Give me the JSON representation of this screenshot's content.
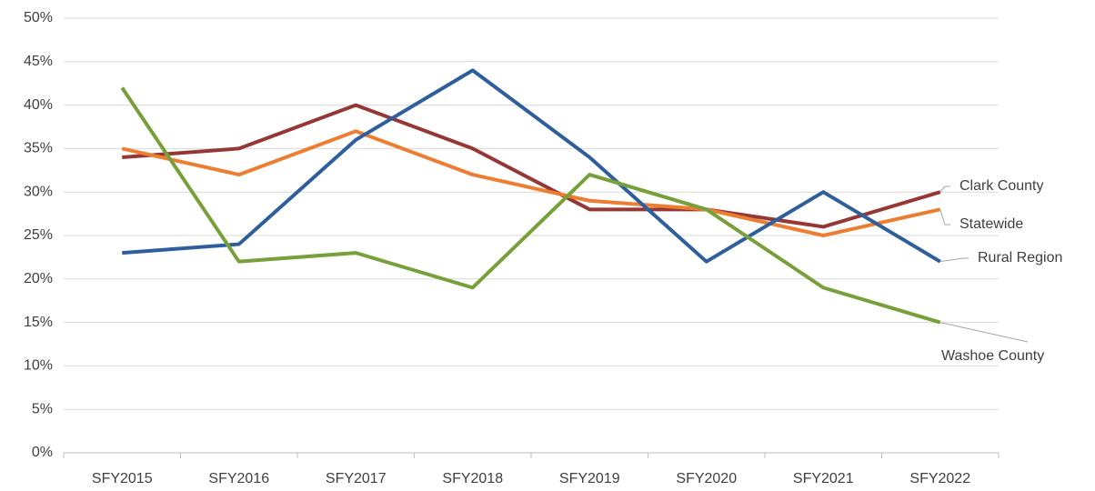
{
  "chart_data": {
    "type": "line",
    "categories": [
      "SFY2015",
      "SFY2016",
      "SFY2017",
      "SFY2018",
      "SFY2019",
      "SFY2020",
      "SFY2021",
      "SFY2022"
    ],
    "series": [
      {
        "name": "Clark County",
        "color": "#953735",
        "values": [
          34,
          35,
          40,
          35,
          28,
          28,
          26,
          30
        ]
      },
      {
        "name": "Statewide",
        "color": "#ed7d31",
        "values": [
          35,
          32,
          37,
          32,
          29,
          28,
          25,
          28
        ]
      },
      {
        "name": "Rural Region",
        "color": "#2e5e9c",
        "values": [
          23,
          24,
          36,
          44,
          34,
          22,
          30,
          22
        ]
      },
      {
        "name": "Washoe County",
        "color": "#77a03a",
        "values": [
          42,
          22,
          23,
          19,
          32,
          28,
          19,
          15
        ]
      }
    ],
    "ylim": [
      0,
      50
    ],
    "yticks": [
      {
        "value": 0,
        "label": "0%"
      },
      {
        "value": 5,
        "label": "5%"
      },
      {
        "value": 10,
        "label": "10%"
      },
      {
        "value": 15,
        "label": "15%"
      },
      {
        "value": 20,
        "label": "20%"
      },
      {
        "value": 25,
        "label": "25%"
      },
      {
        "value": 30,
        "label": "30%"
      },
      {
        "value": 35,
        "label": "35%"
      },
      {
        "value": 40,
        "label": "40%"
      },
      {
        "value": 45,
        "label": "45%"
      },
      {
        "value": 50,
        "label": "50%"
      }
    ],
    "grid": true
  }
}
